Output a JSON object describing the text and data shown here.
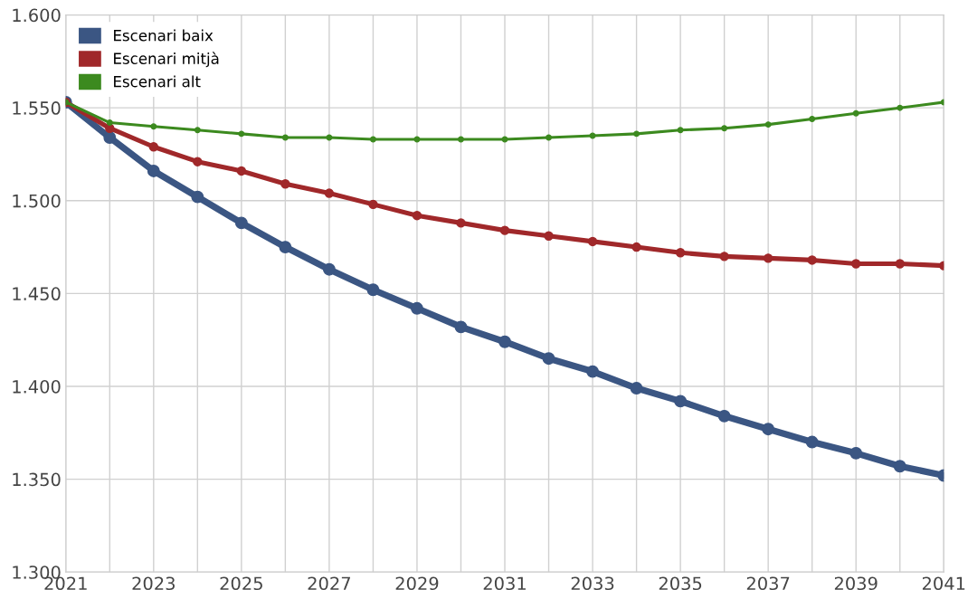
{
  "chart_data": {
    "type": "line",
    "x": [
      2021,
      2022,
      2023,
      2024,
      2025,
      2026,
      2027,
      2028,
      2029,
      2030,
      2031,
      2032,
      2033,
      2034,
      2035,
      2036,
      2037,
      2038,
      2039,
      2040,
      2041
    ],
    "series": [
      {
        "name": "Escenari baix",
        "color": "#3b5683",
        "values": [
          1553,
          1534,
          1516,
          1502,
          1488,
          1475,
          1463,
          1452,
          1442,
          1432,
          1424,
          1415,
          1408,
          1399,
          1392,
          1384,
          1377,
          1370,
          1364,
          1357,
          1352
        ]
      },
      {
        "name": "Escenari mitjà",
        "color": "#a0282a",
        "values": [
          1553,
          1539,
          1529,
          1521,
          1516,
          1509,
          1504,
          1498,
          1492,
          1488,
          1484,
          1481,
          1478,
          1475,
          1472,
          1470,
          1469,
          1468,
          1466,
          1466,
          1465
        ]
      },
      {
        "name": "Escenari alt",
        "color": "#3c8a1f",
        "values": [
          1553,
          1542,
          1540,
          1538,
          1536,
          1534,
          1534,
          1533,
          1533,
          1533,
          1533,
          1534,
          1535,
          1536,
          1538,
          1539,
          1541,
          1544,
          1547,
          1550,
          1553
        ]
      }
    ],
    "xlim": [
      2021,
      2041
    ],
    "xticks": [
      2021,
      {
        "value": 2022,
        "label": null
      },
      2023,
      {
        "value": 2024,
        "label": null
      },
      2025,
      {
        "value": 2026,
        "label": null
      },
      2027,
      {
        "value": 2028,
        "label": null
      },
      2029,
      {
        "value": 2030,
        "label": null
      },
      2031,
      {
        "value": 2032,
        "label": null
      },
      2033,
      {
        "value": 2034,
        "label": null
      },
      2035,
      {
        "value": 2036,
        "label": null
      },
      2037,
      {
        "value": 2038,
        "label": null
      },
      2039,
      {
        "value": 2040,
        "label": null
      },
      2041
    ],
    "ylim": [
      1300,
      1600
    ],
    "yticks": [
      {
        "value": 1300,
        "label": "1.300"
      },
      {
        "value": 1350,
        "label": "1.350"
      },
      {
        "value": 1400,
        "label": "1.400"
      },
      {
        "value": 1450,
        "label": "1.450"
      },
      {
        "value": 1500,
        "label": "1.500"
      },
      {
        "value": 1550,
        "label": "1.550"
      },
      {
        "value": 1600,
        "label": "1.600"
      }
    ],
    "grid": true,
    "legend": "top left",
    "marker": "circle",
    "line_style": "solid"
  }
}
